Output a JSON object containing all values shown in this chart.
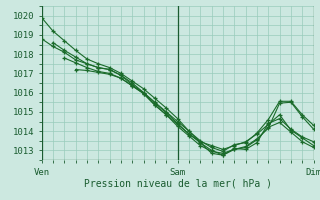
{
  "xlabel": "Pression niveau de la mer( hPa )",
  "background_color": "#cce8e0",
  "grid_color": "#99ccbb",
  "line_color": "#1a6b2a",
  "xlim": [
    0,
    48
  ],
  "ylim": [
    1012.5,
    1020.5
  ],
  "yticks": [
    1013,
    1014,
    1015,
    1016,
    1017,
    1018,
    1019,
    1020
  ],
  "xtick_positions": [
    0,
    24,
    48
  ],
  "xtick_labels": [
    "Ven",
    "Sam",
    "Dim"
  ],
  "lines": [
    [
      0.0,
      1019.9,
      2,
      1019.2,
      4,
      1018.7,
      6,
      1018.2,
      8,
      1017.75,
      10,
      1017.5,
      12,
      1017.3,
      14,
      1017.0,
      16,
      1016.6,
      18,
      1016.2,
      20,
      1015.7,
      22,
      1015.2,
      24,
      1014.65,
      26,
      1014.0,
      28,
      1013.4,
      30,
      1012.85,
      32,
      1012.75,
      34,
      1013.1,
      36,
      1013.05,
      38,
      1013.4,
      40,
      1014.4,
      42,
      1014.65,
      44,
      1014.1,
      46,
      1013.7,
      48,
      1013.45
    ],
    [
      0.0,
      1018.8,
      2,
      1018.4,
      4,
      1018.1,
      6,
      1017.7,
      8,
      1017.5,
      10,
      1017.3,
      12,
      1017.2,
      14,
      1016.9,
      16,
      1016.4,
      18,
      1016.0,
      20,
      1015.45,
      22,
      1014.95,
      24,
      1014.4,
      26,
      1013.85,
      28,
      1013.4,
      30,
      1013.0,
      32,
      1012.75,
      34,
      1013.05,
      36,
      1013.2,
      38,
      1013.6,
      40,
      1014.15,
      42,
      1015.45,
      44,
      1015.5,
      46,
      1014.75,
      48,
      1014.1
    ],
    [
      2,
      1018.6,
      4,
      1018.2,
      6,
      1017.85,
      8,
      1017.5,
      10,
      1017.3,
      12,
      1017.2,
      14,
      1016.9,
      16,
      1016.5,
      18,
      1016.0,
      20,
      1015.5,
      22,
      1015.0,
      24,
      1014.5,
      26,
      1014.0,
      28,
      1013.5,
      30,
      1013.15,
      32,
      1012.95,
      34,
      1013.3,
      36,
      1013.4,
      38,
      1013.9,
      40,
      1014.6,
      42,
      1015.55,
      44,
      1015.55,
      46,
      1014.85,
      48,
      1014.3
    ],
    [
      4,
      1017.8,
      6,
      1017.55,
      8,
      1017.3,
      10,
      1017.1,
      12,
      1017.0,
      14,
      1016.75,
      16,
      1016.35,
      18,
      1015.95,
      20,
      1015.35,
      22,
      1014.85,
      24,
      1014.25,
      26,
      1013.75,
      28,
      1013.25,
      30,
      1012.95,
      32,
      1012.85,
      34,
      1013.05,
      36,
      1013.15,
      38,
      1013.55,
      40,
      1014.2,
      42,
      1014.45,
      44,
      1013.95,
      46,
      1013.45,
      48,
      1013.15
    ],
    [
      6,
      1017.2,
      8,
      1017.15,
      10,
      1017.05,
      12,
      1016.95,
      14,
      1016.75,
      16,
      1016.35,
      18,
      1015.95,
      20,
      1015.35,
      22,
      1014.85,
      24,
      1014.35,
      26,
      1013.85,
      28,
      1013.45,
      30,
      1013.25,
      32,
      1013.05,
      34,
      1013.25,
      36,
      1013.45,
      38,
      1013.85,
      40,
      1014.35,
      42,
      1014.85,
      44,
      1014.05,
      46,
      1013.65,
      48,
      1013.25
    ]
  ]
}
